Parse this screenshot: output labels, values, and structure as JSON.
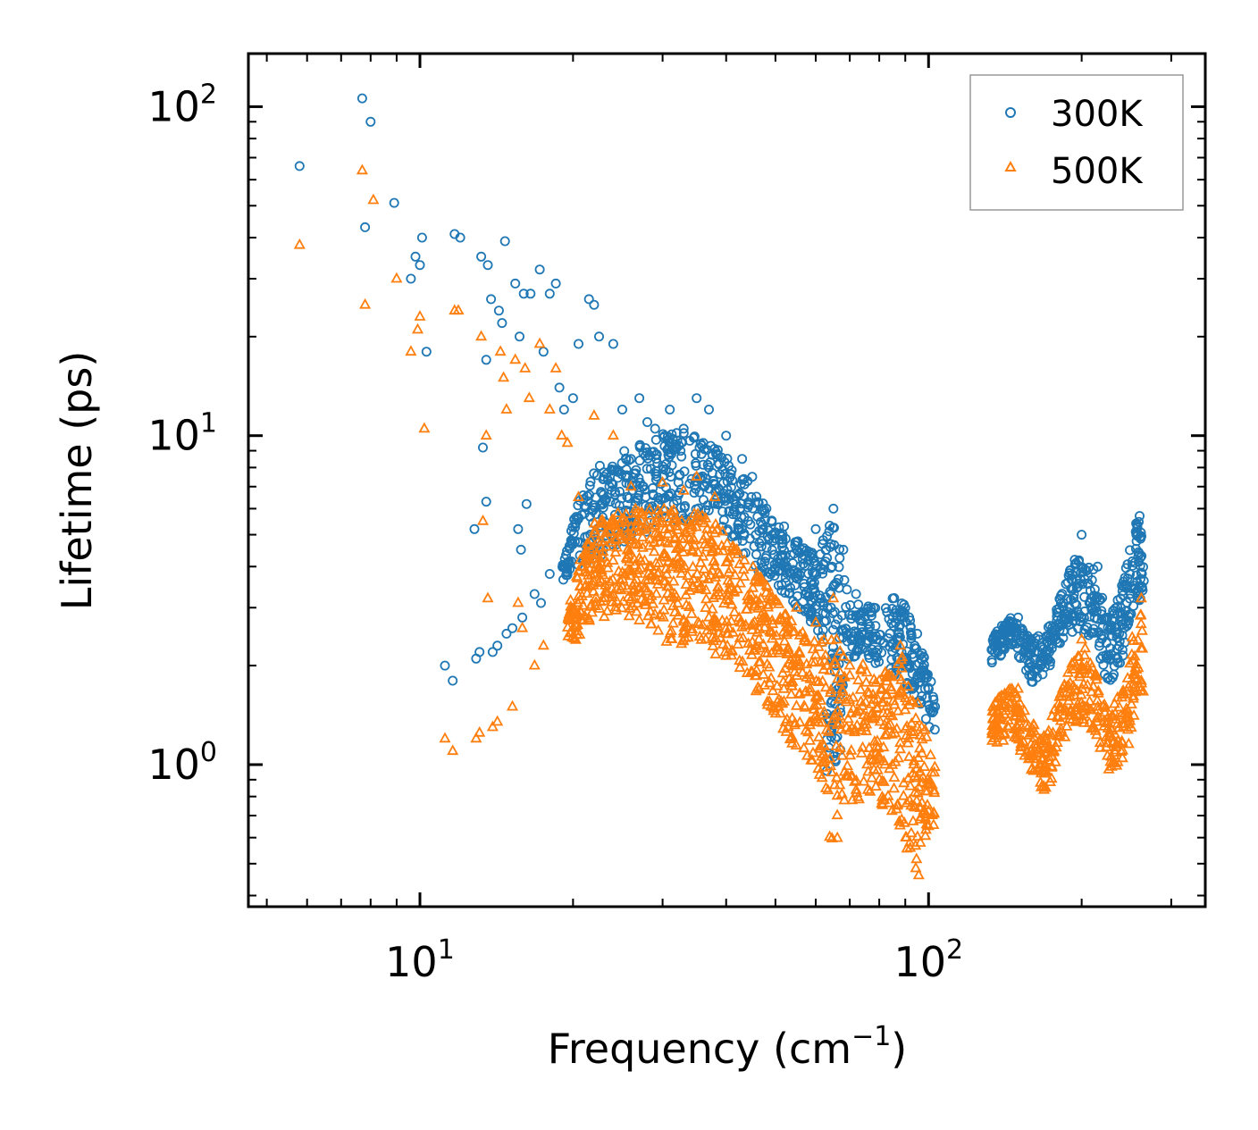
{
  "chart_data": {
    "type": "scatter",
    "xscale": "log",
    "yscale": "log",
    "xlabel": "Frequency (cm",
    "xlabel_sup": "−1",
    "xlabel_close": ")",
    "ylabel": "Lifetime (ps)",
    "xlim": [
      4.6,
      350
    ],
    "ylim": [
      0.37,
      145
    ],
    "xticks": [
      {
        "value": 10,
        "base": "10",
        "exp": "1"
      },
      {
        "value": 100,
        "base": "10",
        "exp": "2"
      }
    ],
    "yticks": [
      {
        "value": 1,
        "base": "10",
        "exp": "0"
      },
      {
        "value": 10,
        "base": "10",
        "exp": "1"
      },
      {
        "value": 100,
        "base": "10",
        "exp": "2"
      }
    ],
    "legend_position": "top-right",
    "series": [
      {
        "name": "300K",
        "color": "#1f77b4",
        "marker": "circle",
        "points": [
          [
            5.8,
            66
          ],
          [
            7.7,
            106
          ],
          [
            7.8,
            43
          ],
          [
            8.0,
            90
          ],
          [
            8.9,
            51
          ],
          [
            9.6,
            30
          ],
          [
            9.8,
            35
          ],
          [
            10.0,
            33
          ],
          [
            10.1,
            40
          ],
          [
            10.3,
            18
          ],
          [
            11.2,
            2.0
          ],
          [
            11.6,
            1.8
          ],
          [
            11.7,
            41
          ],
          [
            12.0,
            40
          ],
          [
            12.8,
            5.2
          ],
          [
            12.9,
            2.1
          ],
          [
            13.1,
            2.2
          ],
          [
            13.2,
            35
          ],
          [
            13.3,
            9.2
          ],
          [
            13.5,
            17
          ],
          [
            13.5,
            6.3
          ],
          [
            13.6,
            33
          ],
          [
            13.8,
            26
          ],
          [
            13.9,
            2.2
          ],
          [
            14.2,
            2.3
          ],
          [
            14.3,
            24
          ],
          [
            14.5,
            22
          ],
          [
            14.7,
            39
          ],
          [
            14.8,
            2.5
          ],
          [
            15.2,
            2.6
          ],
          [
            15.4,
            29
          ],
          [
            15.6,
            5.2
          ],
          [
            15.7,
            20
          ],
          [
            15.8,
            4.5
          ],
          [
            15.9,
            2.8
          ],
          [
            16.0,
            27
          ],
          [
            16.2,
            6.2
          ],
          [
            16.5,
            27
          ],
          [
            16.8,
            3.3
          ],
          [
            17.2,
            32
          ],
          [
            17.3,
            3.1
          ],
          [
            17.5,
            18
          ],
          [
            18.0,
            27
          ],
          [
            18.0,
            3.8
          ],
          [
            18.5,
            29
          ],
          [
            18.8,
            14
          ],
          [
            19.2,
            12
          ],
          [
            19.5,
            4.0
          ],
          [
            20.0,
            13
          ],
          [
            20.5,
            19
          ],
          [
            21.5,
            26
          ],
          [
            22.0,
            25
          ],
          [
            22.5,
            20
          ],
          [
            23.0,
            7.5
          ],
          [
            24.0,
            19
          ],
          [
            25.0,
            12
          ],
          [
            26.0,
            8.5
          ],
          [
            27.0,
            13
          ],
          [
            28.0,
            11
          ],
          [
            29.0,
            10.5
          ],
          [
            31.0,
            12
          ],
          [
            33.0,
            10.5
          ],
          [
            35.0,
            13
          ],
          [
            37.0,
            12
          ],
          [
            40.0,
            10
          ],
          [
            43.0,
            8.5
          ],
          [
            45.0,
            7.5
          ],
          [
            48.0,
            6.0
          ],
          [
            52.0,
            5.3
          ],
          [
            55.0,
            4.5
          ],
          [
            60.0,
            5.2
          ],
          [
            65.0,
            6.0
          ],
          [
            68.0,
            4.5
          ],
          [
            72.0,
            3.3
          ],
          [
            78.0,
            3.0
          ],
          [
            85.0,
            3.2
          ],
          [
            90.0,
            3.0
          ],
          [
            95.0,
            2.5
          ],
          [
            100.0,
            1.7
          ],
          [
            103.0,
            1.5
          ],
          [
            135.0,
            2.3
          ],
          [
            150.0,
            2.8
          ],
          [
            165.0,
            2.4
          ],
          [
            180.0,
            2.9
          ],
          [
            200.0,
            5.0
          ],
          [
            215.0,
            4.0
          ],
          [
            240.0,
            3.5
          ],
          [
            260.0,
            5.7
          ]
        ],
        "bands": [
          {
            "x_from": 19.0,
            "x_to": 103.0,
            "anchors": [
              [
                19,
                3.6,
                4.3
              ],
              [
                22,
                4.2,
                8.0
              ],
              [
                27,
                5.0,
                9.5
              ],
              [
                32,
                5.5,
                10.5
              ],
              [
                38,
                5.5,
                9.5
              ],
              [
                45,
                4.0,
                7.0
              ],
              [
                52,
                3.3,
                5.0
              ],
              [
                60,
                2.6,
                4.5
              ],
              [
                65,
                1.9,
                5.6
              ],
              [
                70,
                2.1,
                3.1
              ],
              [
                80,
                2.0,
                3.0
              ],
              [
                88,
                1.8,
                3.3
              ],
              [
                95,
                1.5,
                2.5
              ],
              [
                103,
                1.2,
                1.6
              ]
            ],
            "count": 900
          },
          {
            "x_from": 63.0,
            "x_to": 68.0,
            "anchors": [
              [
                63,
                0.9,
                1.5
              ],
              [
                68,
                1.1,
                2.0
              ]
            ],
            "count": 40
          },
          {
            "x_from": 133.0,
            "x_to": 265.0,
            "anchors": [
              [
                133,
                2.0,
                2.5
              ],
              [
                145,
                2.3,
                2.8
              ],
              [
                160,
                1.7,
                2.4
              ],
              [
                175,
                2.0,
                2.7
              ],
              [
                195,
                2.6,
                4.3
              ],
              [
                210,
                2.4,
                4.0
              ],
              [
                225,
                1.7,
                2.8
              ],
              [
                240,
                2.0,
                3.4
              ],
              [
                255,
                3.0,
                5.5
              ],
              [
                265,
                3.3,
                5.5
              ]
            ],
            "count": 450
          }
        ]
      },
      {
        "name": "500K",
        "color": "#ff7f0e",
        "marker": "triangle",
        "points": [
          [
            5.8,
            38
          ],
          [
            7.7,
            64
          ],
          [
            7.8,
            25
          ],
          [
            8.1,
            52
          ],
          [
            9.0,
            30
          ],
          [
            9.6,
            18
          ],
          [
            9.9,
            21
          ],
          [
            10.0,
            23
          ],
          [
            10.2,
            10.5
          ],
          [
            11.2,
            1.2
          ],
          [
            11.6,
            1.1
          ],
          [
            11.7,
            24
          ],
          [
            11.9,
            24
          ],
          [
            12.9,
            1.2
          ],
          [
            13.1,
            1.25
          ],
          [
            13.2,
            20
          ],
          [
            13.3,
            5.5
          ],
          [
            13.5,
            10
          ],
          [
            13.6,
            3.2
          ],
          [
            13.9,
            1.3
          ],
          [
            14.2,
            1.35
          ],
          [
            14.4,
            18
          ],
          [
            14.6,
            15
          ],
          [
            14.8,
            12
          ],
          [
            15.2,
            1.5
          ],
          [
            15.4,
            17
          ],
          [
            15.6,
            3.1
          ],
          [
            15.9,
            2.6
          ],
          [
            16.1,
            16
          ],
          [
            16.4,
            13
          ],
          [
            16.8,
            2.0
          ],
          [
            17.2,
            19
          ],
          [
            17.5,
            2.3
          ],
          [
            18.0,
            12
          ],
          [
            18.5,
            16
          ],
          [
            19.0,
            10
          ],
          [
            19.5,
            9.5
          ],
          [
            20.5,
            6.5
          ],
          [
            22.0,
            11.5
          ],
          [
            24.0,
            10
          ],
          [
            26.0,
            7.0
          ],
          [
            30.0,
            7.2
          ],
          [
            33.0,
            6.8
          ],
          [
            35.0,
            7.5
          ],
          [
            38.0,
            6.5
          ],
          [
            42.0,
            4.5
          ],
          [
            48.0,
            3.5
          ],
          [
            55.0,
            3.0
          ],
          [
            60.0,
            2.7
          ],
          [
            65.0,
            3.2
          ],
          [
            70.0,
            2.0
          ],
          [
            80.0,
            1.8
          ],
          [
            88.0,
            2.3
          ],
          [
            95.0,
            1.3
          ],
          [
            100.0,
            0.65
          ],
          [
            135.0,
            1.3
          ],
          [
            150.0,
            1.7
          ],
          [
            170.0,
            0.85
          ],
          [
            200.0,
            2.4
          ],
          [
            240.0,
            1.6
          ],
          [
            262.0,
            3.2
          ]
        ],
        "bands": [
          {
            "x_from": 19.5,
            "x_to": 103.0,
            "anchors": [
              [
                19.5,
                2.2,
                3.0
              ],
              [
                22,
                2.8,
                5.5
              ],
              [
                26,
                2.8,
                6.0
              ],
              [
                31,
                2.3,
                6.0
              ],
              [
                36,
                2.3,
                6.0
              ],
              [
                42,
                1.9,
                4.6
              ],
              [
                48,
                1.5,
                3.5
              ],
              [
                55,
                1.1,
                2.6
              ],
              [
                60,
                1.0,
                2.4
              ],
              [
                64,
                0.5,
                2.5
              ],
              [
                70,
                0.75,
                2.2
              ],
              [
                80,
                0.75,
                1.8
              ],
              [
                88,
                0.6,
                2.2
              ],
              [
                96,
                0.45,
                1.5
              ],
              [
                103,
                0.65,
                1.0
              ]
            ],
            "count": 1100
          },
          {
            "x_from": 133.0,
            "x_to": 265.0,
            "anchors": [
              [
                133,
                1.15,
                1.5
              ],
              [
                145,
                1.2,
                1.75
              ],
              [
                160,
                0.95,
                1.35
              ],
              [
                170,
                0.78,
                1.2
              ],
              [
                190,
                1.3,
                2.0
              ],
              [
                205,
                1.3,
                2.3
              ],
              [
                225,
                0.95,
                1.4
              ],
              [
                245,
                1.0,
                1.8
              ],
              [
                260,
                1.6,
                3.3
              ],
              [
                265,
                1.6,
                3.0
              ]
            ],
            "count": 400
          }
        ]
      }
    ]
  }
}
